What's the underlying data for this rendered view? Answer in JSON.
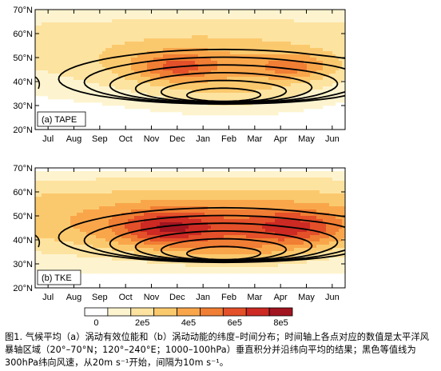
{
  "chart_data": [
    {
      "type": "heatmap",
      "panel_label": "(a) TAPE",
      "x_ticks": [
        "Jul",
        "Aug",
        "Sep",
        "Oct",
        "Nov",
        "Dec",
        "Jan",
        "Feb",
        "Mar",
        "Apr",
        "May",
        "Jun"
      ],
      "y_ticks": [
        "20°N",
        "30°N",
        "40°N",
        "50°N",
        "60°N",
        "70°N"
      ],
      "ylim_deg": [
        20,
        70
      ],
      "shading_max_value": 620000.0,
      "shading_peaks": [
        {
          "month": "Dec",
          "lat": 46,
          "value": 620000.0
        },
        {
          "month": "Apr",
          "lat": 46,
          "value": 600000.0
        }
      ],
      "contours": {
        "quantity": "300hPa zonal wind",
        "units": "m s-1",
        "start": 20,
        "interval": 10,
        "levels": [
          20,
          30,
          40,
          50,
          60,
          70
        ]
      }
    },
    {
      "type": "heatmap",
      "panel_label": "(b) TKE",
      "x_ticks": [
        "Jul",
        "Aug",
        "Sep",
        "Oct",
        "Nov",
        "Dec",
        "Jan",
        "Feb",
        "Mar",
        "Apr",
        "May",
        "Jun"
      ],
      "y_ticks": [
        "20°N",
        "30°N",
        "40°N",
        "50°N",
        "60°N",
        "70°N"
      ],
      "ylim_deg": [
        20,
        70
      ],
      "shading_max_value": 860000.0,
      "shading_peaks": [
        {
          "month": "Nov",
          "lat": 45,
          "value": 860000.0
        },
        {
          "month": "Apr",
          "lat": 45,
          "value": 840000.0
        }
      ],
      "contours": {
        "quantity": "300hPa zonal wind",
        "units": "m s-1",
        "start": 20,
        "interval": 10,
        "levels": [
          20,
          30,
          40,
          50,
          60,
          70
        ]
      }
    }
  ],
  "colorbar": {
    "tick_labels": [
      "0",
      "2e5",
      "4e5",
      "6e5",
      "8e5"
    ],
    "tick_values": [
      0,
      200000,
      400000,
      600000,
      800000
    ],
    "bounds": [
      0,
      100000,
      200000,
      300000,
      400000,
      500000,
      600000,
      700000,
      800000,
      900000
    ],
    "colors": [
      "#ffffff",
      "#fdf4cf",
      "#fde3a0",
      "#fbc96d",
      "#f9a64b",
      "#f07e34",
      "#e45029",
      "#cc2a23",
      "#a11520"
    ]
  },
  "caption": "图1. 气候平均（a）涡动有效位能和（b）涡动动能的纬度–时间分布；时间轴上各点对应的数值是太平洋风暴轴区域（20°–70°N；120°–240°E；1000–100hPa）垂直积分并沿纬向平均的结果；黑色等值线为300hPa纬向风速，从20m s⁻¹开始，间隔为10m s⁻¹。"
}
